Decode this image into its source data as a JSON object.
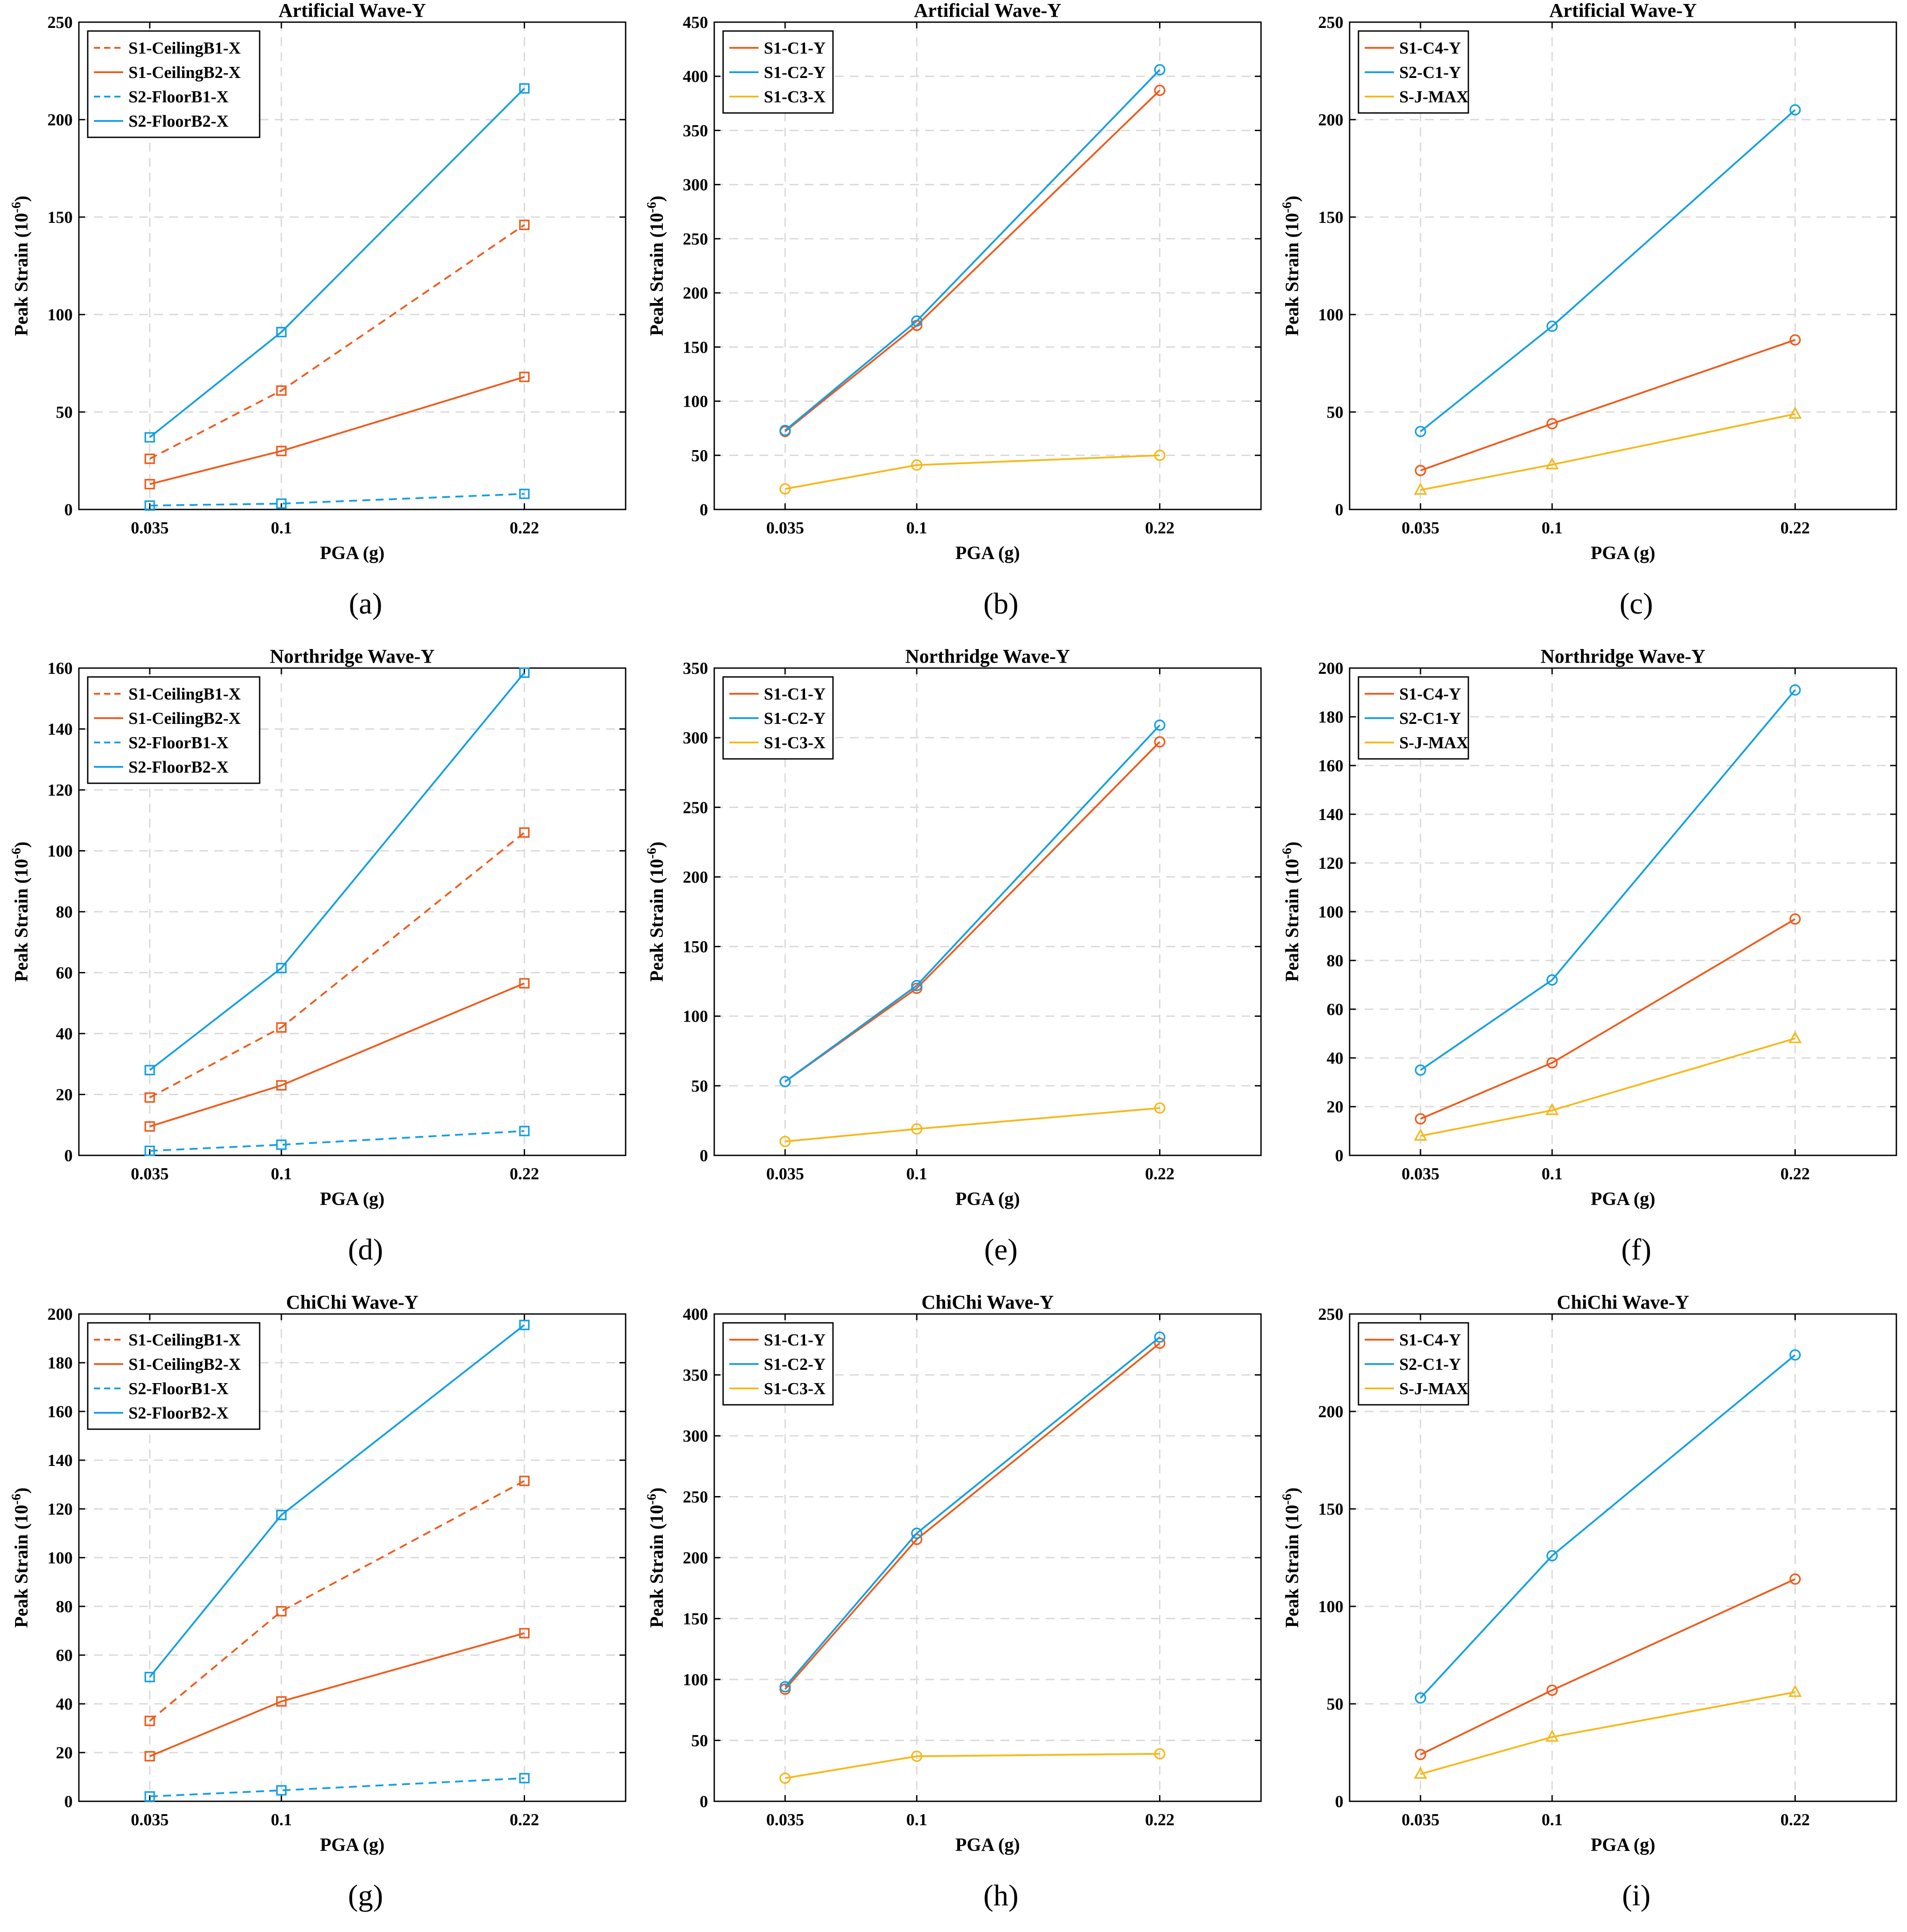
{
  "colors": {
    "orange": "#F05A1A",
    "blue": "#139FE6",
    "yellow": "#F6B81A"
  },
  "x_axis": {
    "label": "PGA (g)",
    "ticks": [
      "0.035",
      "0.1",
      "0.22"
    ],
    "values": [
      0.035,
      0.1,
      0.22
    ],
    "range": [
      0,
      0.27
    ]
  },
  "ylabel_text": "Peak Strain (10",
  "ylabel_exp": "-6",
  "ylabel_close": ")",
  "chart_data": [
    {
      "id": "a",
      "caption": "(a)",
      "type": "line",
      "title": "Artificial Wave-Y",
      "xlabel": "PGA (g)",
      "ylabel": "Peak Strain (10-6)",
      "ylim": [
        0,
        250
      ],
      "yticks": [
        0,
        50,
        100,
        150,
        200,
        250
      ],
      "legend": "top-left",
      "series": [
        {
          "name": "S1-CeilingB1-X",
          "color": "orange",
          "dash": true,
          "marker": "square",
          "x": [
            0.035,
            0.1,
            0.22
          ],
          "values": [
            26,
            61,
            146
          ]
        },
        {
          "name": "S1-CeilingB2-X",
          "color": "orange",
          "dash": false,
          "marker": "square",
          "x": [
            0.035,
            0.1,
            0.22
          ],
          "values": [
            13,
            30,
            68
          ]
        },
        {
          "name": "S2-FloorB1-X",
          "color": "blue",
          "dash": true,
          "marker": "square",
          "x": [
            0.035,
            0.1,
            0.22
          ],
          "values": [
            2,
            3,
            8
          ]
        },
        {
          "name": "S2-FloorB2-X",
          "color": "blue",
          "dash": false,
          "marker": "square",
          "x": [
            0.035,
            0.1,
            0.22
          ],
          "values": [
            37,
            91,
            216
          ]
        }
      ]
    },
    {
      "id": "b",
      "caption": "(b)",
      "type": "line",
      "title": "Artificial Wave-Y",
      "xlabel": "PGA (g)",
      "ylabel": "Peak Strain (10-6)",
      "ylim": [
        0,
        450
      ],
      "yticks": [
        0,
        50,
        100,
        150,
        200,
        250,
        300,
        350,
        400,
        450
      ],
      "legend": "top-left",
      "series": [
        {
          "name": "S1-C1-Y",
          "color": "orange",
          "dash": false,
          "marker": "circle",
          "x": [
            0.035,
            0.1,
            0.22
          ],
          "values": [
            72,
            170,
            387
          ]
        },
        {
          "name": "S1-C2-Y",
          "color": "blue",
          "dash": false,
          "marker": "circle",
          "x": [
            0.035,
            0.1,
            0.22
          ],
          "values": [
            73,
            174,
            406
          ]
        },
        {
          "name": "S1-C3-X",
          "color": "yellow",
          "dash": false,
          "marker": "circle",
          "x": [
            0.035,
            0.1,
            0.22
          ],
          "values": [
            19,
            41,
            50
          ]
        }
      ]
    },
    {
      "id": "c",
      "caption": "(c)",
      "type": "line",
      "title": "Artificial Wave-Y",
      "xlabel": "PGA (g)",
      "ylabel": "Peak Strain (10-6)",
      "ylim": [
        0,
        250
      ],
      "yticks": [
        0,
        50,
        100,
        150,
        200,
        250
      ],
      "legend": "top-left",
      "series": [
        {
          "name": "S1-C4-Y",
          "color": "orange",
          "dash": false,
          "marker": "circle",
          "x": [
            0.035,
            0.1,
            0.22
          ],
          "values": [
            20,
            44,
            87
          ]
        },
        {
          "name": "S2-C1-Y",
          "color": "blue",
          "dash": false,
          "marker": "circle",
          "x": [
            0.035,
            0.1,
            0.22
          ],
          "values": [
            40,
            94,
            205
          ]
        },
        {
          "name": "S-J-MAX",
          "color": "yellow",
          "dash": false,
          "marker": "triangle",
          "x": [
            0.035,
            0.1,
            0.22
          ],
          "values": [
            10,
            23,
            49
          ]
        }
      ]
    },
    {
      "id": "d",
      "caption": "(d)",
      "type": "line",
      "title": "Northridge Wave-Y",
      "xlabel": "PGA (g)",
      "ylabel": "Peak Strain (10-6)",
      "ylim": [
        0,
        160
      ],
      "yticks": [
        0,
        20,
        40,
        60,
        80,
        100,
        120,
        140,
        160
      ],
      "legend": "top-left",
      "series": [
        {
          "name": "S1-CeilingB1-X",
          "color": "orange",
          "dash": true,
          "marker": "square",
          "x": [
            0.035,
            0.1,
            0.22
          ],
          "values": [
            19,
            42,
            106
          ]
        },
        {
          "name": "S1-CeilingB2-X",
          "color": "orange",
          "dash": false,
          "marker": "square",
          "x": [
            0.035,
            0.1,
            0.22
          ],
          "values": [
            9.5,
            23,
            56.5
          ]
        },
        {
          "name": "S2-FloorB1-X",
          "color": "blue",
          "dash": true,
          "marker": "square",
          "x": [
            0.035,
            0.1,
            0.22
          ],
          "values": [
            1.5,
            3.5,
            8
          ]
        },
        {
          "name": "S2-FloorB2-X",
          "color": "blue",
          "dash": false,
          "marker": "square",
          "x": [
            0.035,
            0.1,
            0.22
          ],
          "values": [
            28,
            61.5,
            158.5
          ]
        }
      ]
    },
    {
      "id": "e",
      "caption": "(e)",
      "type": "line",
      "title": "Northridge Wave-Y",
      "xlabel": "PGA (g)",
      "ylabel": "Peak Strain (10-6)",
      "ylim": [
        0,
        350
      ],
      "yticks": [
        0,
        50,
        100,
        150,
        200,
        250,
        300,
        350
      ],
      "legend": "top-left",
      "series": [
        {
          "name": "S1-C1-Y",
          "color": "orange",
          "dash": false,
          "marker": "circle",
          "x": [
            0.035,
            0.1,
            0.22
          ],
          "values": [
            53,
            120,
            297
          ]
        },
        {
          "name": "S1-C2-Y",
          "color": "blue",
          "dash": false,
          "marker": "circle",
          "x": [
            0.035,
            0.1,
            0.22
          ],
          "values": [
            53,
            122,
            309
          ]
        },
        {
          "name": "S1-C3-X",
          "color": "yellow",
          "dash": false,
          "marker": "circle",
          "x": [
            0.035,
            0.1,
            0.22
          ],
          "values": [
            10,
            19,
            34
          ]
        }
      ]
    },
    {
      "id": "f",
      "caption": "(f)",
      "type": "line",
      "title": "Northridge Wave-Y",
      "xlabel": "PGA (g)",
      "ylabel": "Peak Strain (10-6)",
      "ylim": [
        0,
        200
      ],
      "yticks": [
        0,
        20,
        40,
        60,
        80,
        100,
        120,
        140,
        160,
        180,
        200
      ],
      "legend": "top-left",
      "series": [
        {
          "name": "S1-C4-Y",
          "color": "orange",
          "dash": false,
          "marker": "circle",
          "x": [
            0.035,
            0.1,
            0.22
          ],
          "values": [
            15,
            38,
            97
          ]
        },
        {
          "name": "S2-C1-Y",
          "color": "blue",
          "dash": false,
          "marker": "circle",
          "x": [
            0.035,
            0.1,
            0.22
          ],
          "values": [
            35,
            72,
            191
          ]
        },
        {
          "name": "S-J-MAX",
          "color": "yellow",
          "dash": false,
          "marker": "triangle",
          "x": [
            0.035,
            0.1,
            0.22
          ],
          "values": [
            8,
            18.5,
            48
          ]
        }
      ]
    },
    {
      "id": "g",
      "caption": "(g)",
      "type": "line",
      "title": "ChiChi Wave-Y",
      "xlabel": "PGA (g)",
      "ylabel": "Peak Strain (10-6)",
      "ylim": [
        0,
        200
      ],
      "yticks": [
        0,
        20,
        40,
        60,
        80,
        100,
        120,
        140,
        160,
        180,
        200
      ],
      "legend": "top-left",
      "series": [
        {
          "name": "S1-CeilingB1-X",
          "color": "orange",
          "dash": true,
          "marker": "square",
          "x": [
            0.035,
            0.1,
            0.22
          ],
          "values": [
            33,
            78,
            131.5
          ]
        },
        {
          "name": "S1-CeilingB2-X",
          "color": "orange",
          "dash": false,
          "marker": "square",
          "x": [
            0.035,
            0.1,
            0.22
          ],
          "values": [
            18.5,
            41,
            69
          ]
        },
        {
          "name": "S2-FloorB1-X",
          "color": "blue",
          "dash": true,
          "marker": "square",
          "x": [
            0.035,
            0.1,
            0.22
          ],
          "values": [
            2,
            4.5,
            9.5
          ]
        },
        {
          "name": "S2-FloorB2-X",
          "color": "blue",
          "dash": false,
          "marker": "square",
          "x": [
            0.035,
            0.1,
            0.22
          ],
          "values": [
            51,
            117.5,
            195.5
          ]
        }
      ]
    },
    {
      "id": "h",
      "caption": "(h)",
      "type": "line",
      "title": "ChiChi Wave-Y",
      "xlabel": "PGA (g)",
      "ylabel": "Peak Strain (10-6)",
      "ylim": [
        0,
        400
      ],
      "yticks": [
        0,
        50,
        100,
        150,
        200,
        250,
        300,
        350,
        400
      ],
      "legend": "top-left",
      "series": [
        {
          "name": "S1-C1-Y",
          "color": "orange",
          "dash": false,
          "marker": "circle",
          "x": [
            0.035,
            0.1,
            0.22
          ],
          "values": [
            92,
            215,
            376
          ]
        },
        {
          "name": "S1-C2-Y",
          "color": "blue",
          "dash": false,
          "marker": "circle",
          "x": [
            0.035,
            0.1,
            0.22
          ],
          "values": [
            94,
            220,
            381
          ]
        },
        {
          "name": "S1-C3-X",
          "color": "yellow",
          "dash": false,
          "marker": "circle",
          "x": [
            0.035,
            0.1,
            0.22
          ],
          "values": [
            19,
            37,
            39
          ]
        }
      ]
    },
    {
      "id": "i",
      "caption": "(i)",
      "type": "line",
      "title": "ChiChi Wave-Y",
      "xlabel": "PGA (g)",
      "ylabel": "Peak Strain (10-6)",
      "ylim": [
        0,
        250
      ],
      "yticks": [
        0,
        50,
        100,
        150,
        200,
        250
      ],
      "legend": "top-left",
      "series": [
        {
          "name": "S1-C4-Y",
          "color": "orange",
          "dash": false,
          "marker": "circle",
          "x": [
            0.035,
            0.1,
            0.22
          ],
          "values": [
            24,
            57,
            114
          ]
        },
        {
          "name": "S2-C1-Y",
          "color": "blue",
          "dash": false,
          "marker": "circle",
          "x": [
            0.035,
            0.1,
            0.22
          ],
          "values": [
            53,
            126,
            229
          ]
        },
        {
          "name": "S-J-MAX",
          "color": "yellow",
          "dash": false,
          "marker": "triangle",
          "x": [
            0.035,
            0.1,
            0.22
          ],
          "values": [
            14,
            33,
            56
          ]
        }
      ]
    }
  ]
}
